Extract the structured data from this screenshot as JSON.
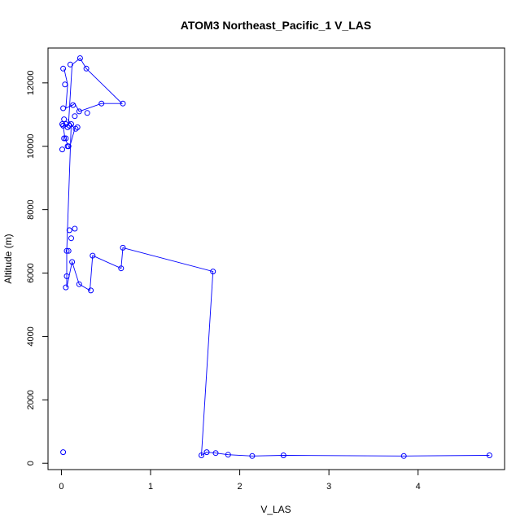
{
  "chart_data": {
    "type": "line",
    "title": "ATOM3 Northeast_Pacific_1 V_LAS",
    "xlabel": "V_LAS",
    "ylabel": "Altitude (m)",
    "xlim": [
      -0.15,
      4.97
    ],
    "ylim": [
      -200,
      13100
    ],
    "xticks": [
      0,
      1,
      2,
      3,
      4
    ],
    "yticks": [
      0,
      2000,
      4000,
      6000,
      8000,
      10000,
      12000
    ],
    "grid": false,
    "series_color": "#0000ff",
    "series": [
      {
        "x": [
          0.03,
          0.07,
          0.05,
          0.12,
          0.1,
          0.15,
          0.2,
          0.45,
          0.68,
          0.28,
          0.21,
          0.12,
          0.08,
          0.02,
          0.04,
          0.08,
          0.09,
          0.15,
          0.07,
          0.11,
          0.06,
          0.06,
          0.12,
          0.2,
          0.32,
          0.35,
          0.67,
          0.69,
          1.7,
          1.57,
          1.63,
          1.73,
          1.87,
          2.14,
          2.49,
          3.84,
          4.8
        ],
        "y": [
          12450,
          11950,
          11200,
          11300,
          11250,
          11350,
          11100,
          11350,
          11350,
          12450,
          12780,
          12580,
          10700,
          10650,
          10250,
          10000,
          9950,
          10550,
          10850,
          10700,
          6700,
          5550,
          6350,
          5650,
          5450,
          6550,
          6150,
          6800,
          6050,
          250,
          350,
          320,
          270,
          230,
          250,
          230,
          250
        ]
      }
    ],
    "scatter_points": {
      "x": [
        0.02,
        0.1,
        0.21,
        0.28,
        0.04,
        0.02,
        0.13,
        0.2,
        0.29,
        0.45,
        0.69,
        0.15,
        0.03,
        0.01,
        0.02,
        0.05,
        0.09,
        0.07,
        0.11,
        0.16,
        0.18,
        0.03,
        0.05,
        0.08,
        0.07,
        0.01,
        0.09,
        0.11,
        0.15,
        0.06,
        0.08,
        0.12,
        0.35,
        0.69,
        0.67,
        1.7,
        0.06,
        0.05,
        0.2,
        0.33,
        0.02,
        1.57,
        1.63,
        1.73,
        1.87,
        2.14,
        2.49,
        3.84,
        4.8
      ],
      "y": [
        12450,
        12580,
        12780,
        12450,
        11950,
        11200,
        11300,
        11100,
        11050,
        11350,
        11350,
        10950,
        10850,
        10700,
        10650,
        10700,
        10650,
        10600,
        10700,
        10550,
        10600,
        10250,
        10250,
        10000,
        10000,
        9900,
        7350,
        7100,
        7400,
        6700,
        6700,
        6350,
        6550,
        6800,
        6150,
        6050,
        5900,
        5550,
        5650,
        5450,
        350,
        250,
        350,
        320,
        270,
        230,
        250,
        230,
        250
      ]
    }
  }
}
